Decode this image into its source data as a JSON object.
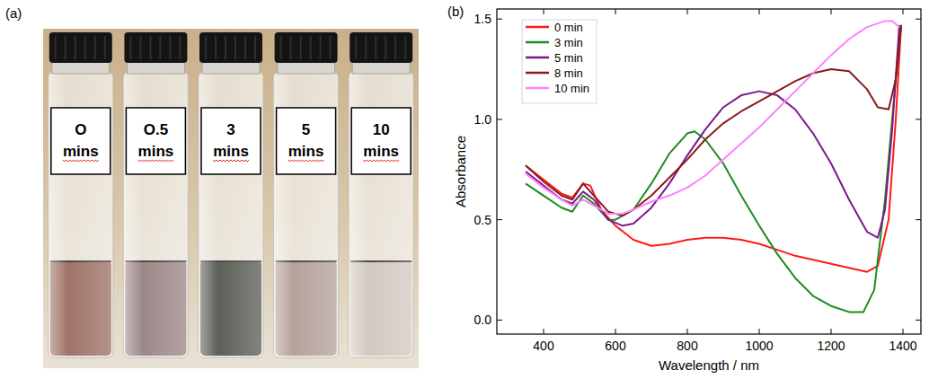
{
  "panels": {
    "a": "(a)",
    "b": "(b)"
  },
  "photo": {
    "vials": [
      {
        "label": "O mins",
        "color": "#8e5b4e"
      },
      {
        "label": "O.5 mins",
        "color": "#8c7373"
      },
      {
        "label": "3 mins",
        "color": "#40433a"
      },
      {
        "label": "5 mins",
        "color": "#a99189"
      },
      {
        "label": "10 mins",
        "color": "#cbbfb8"
      }
    ]
  },
  "chart_data": {
    "type": "line",
    "x_label": "Wavelength / nm",
    "y_label": "Absorbance",
    "xlim": [
      270,
      1450
    ],
    "xticks": [
      400,
      600,
      800,
      1000,
      1200,
      1400
    ],
    "ylim": [
      -0.07,
      1.55
    ],
    "yticks": [
      {
        "value": 0,
        "label": "0.0"
      },
      {
        "value": 0.5,
        "label": "0.5"
      },
      {
        "value": 1,
        "label": "1.0"
      },
      {
        "value": 1.5,
        "label": "1.5"
      }
    ],
    "legend": "upper left",
    "series": [
      {
        "name": "0 min",
        "color": "#ff1a1a",
        "x": [
          350,
          400,
          450,
          480,
          510,
          530,
          560,
          600,
          650,
          700,
          750,
          800,
          850,
          900,
          950,
          1000,
          1050,
          1100,
          1150,
          1200,
          1250,
          1300,
          1330,
          1360,
          1380,
          1395
        ],
        "values": [
          0.77,
          0.7,
          0.63,
          0.61,
          0.68,
          0.67,
          0.55,
          0.47,
          0.4,
          0.37,
          0.38,
          0.4,
          0.41,
          0.41,
          0.4,
          0.38,
          0.35,
          0.32,
          0.3,
          0.28,
          0.26,
          0.24,
          0.27,
          0.5,
          1.0,
          1.47
        ]
      },
      {
        "name": "3 min",
        "color": "#1f8a1f",
        "x": [
          350,
          400,
          450,
          480,
          510,
          540,
          580,
          600,
          650,
          700,
          750,
          800,
          820,
          850,
          900,
          950,
          1000,
          1050,
          1100,
          1150,
          1200,
          1250,
          1290,
          1320,
          1350,
          1380,
          1395
        ],
        "values": [
          0.68,
          0.62,
          0.56,
          0.54,
          0.62,
          0.58,
          0.5,
          0.5,
          0.55,
          0.68,
          0.83,
          0.93,
          0.94,
          0.9,
          0.78,
          0.62,
          0.47,
          0.33,
          0.21,
          0.12,
          0.07,
          0.04,
          0.04,
          0.15,
          0.6,
          1.2,
          1.47
        ]
      },
      {
        "name": "5 min",
        "color": "#7a1a8c",
        "x": [
          350,
          400,
          450,
          480,
          510,
          540,
          580,
          620,
          650,
          700,
          750,
          800,
          850,
          900,
          950,
          1000,
          1050,
          1100,
          1150,
          1200,
          1250,
          1300,
          1330,
          1350,
          1370,
          1390
        ],
        "values": [
          0.74,
          0.67,
          0.6,
          0.58,
          0.64,
          0.6,
          0.5,
          0.47,
          0.48,
          0.56,
          0.68,
          0.82,
          0.95,
          1.06,
          1.12,
          1.14,
          1.12,
          1.05,
          0.93,
          0.78,
          0.6,
          0.44,
          0.41,
          0.55,
          0.95,
          1.47
        ]
      },
      {
        "name": "8 min",
        "color": "#8b1a1a",
        "x": [
          350,
          400,
          450,
          480,
          510,
          540,
          580,
          620,
          650,
          700,
          750,
          800,
          850,
          900,
          950,
          1000,
          1050,
          1100,
          1150,
          1200,
          1250,
          1300,
          1330,
          1360,
          1380,
          1395
        ],
        "values": [
          0.77,
          0.69,
          0.62,
          0.6,
          0.68,
          0.62,
          0.54,
          0.52,
          0.55,
          0.62,
          0.71,
          0.8,
          0.9,
          0.98,
          1.04,
          1.09,
          1.14,
          1.19,
          1.23,
          1.25,
          1.24,
          1.15,
          1.06,
          1.05,
          1.2,
          1.47
        ]
      },
      {
        "name": "10 min",
        "color": "#ff80ff",
        "x": [
          350,
          400,
          450,
          480,
          510,
          540,
          580,
          620,
          650,
          700,
          750,
          800,
          850,
          900,
          950,
          1000,
          1050,
          1100,
          1150,
          1200,
          1250,
          1300,
          1350,
          1370,
          1390
        ],
        "values": [
          0.73,
          0.66,
          0.6,
          0.57,
          0.6,
          0.57,
          0.53,
          0.53,
          0.55,
          0.59,
          0.62,
          0.66,
          0.72,
          0.8,
          0.88,
          0.96,
          1.05,
          1.14,
          1.23,
          1.32,
          1.4,
          1.46,
          1.49,
          1.49,
          1.46
        ]
      }
    ]
  }
}
